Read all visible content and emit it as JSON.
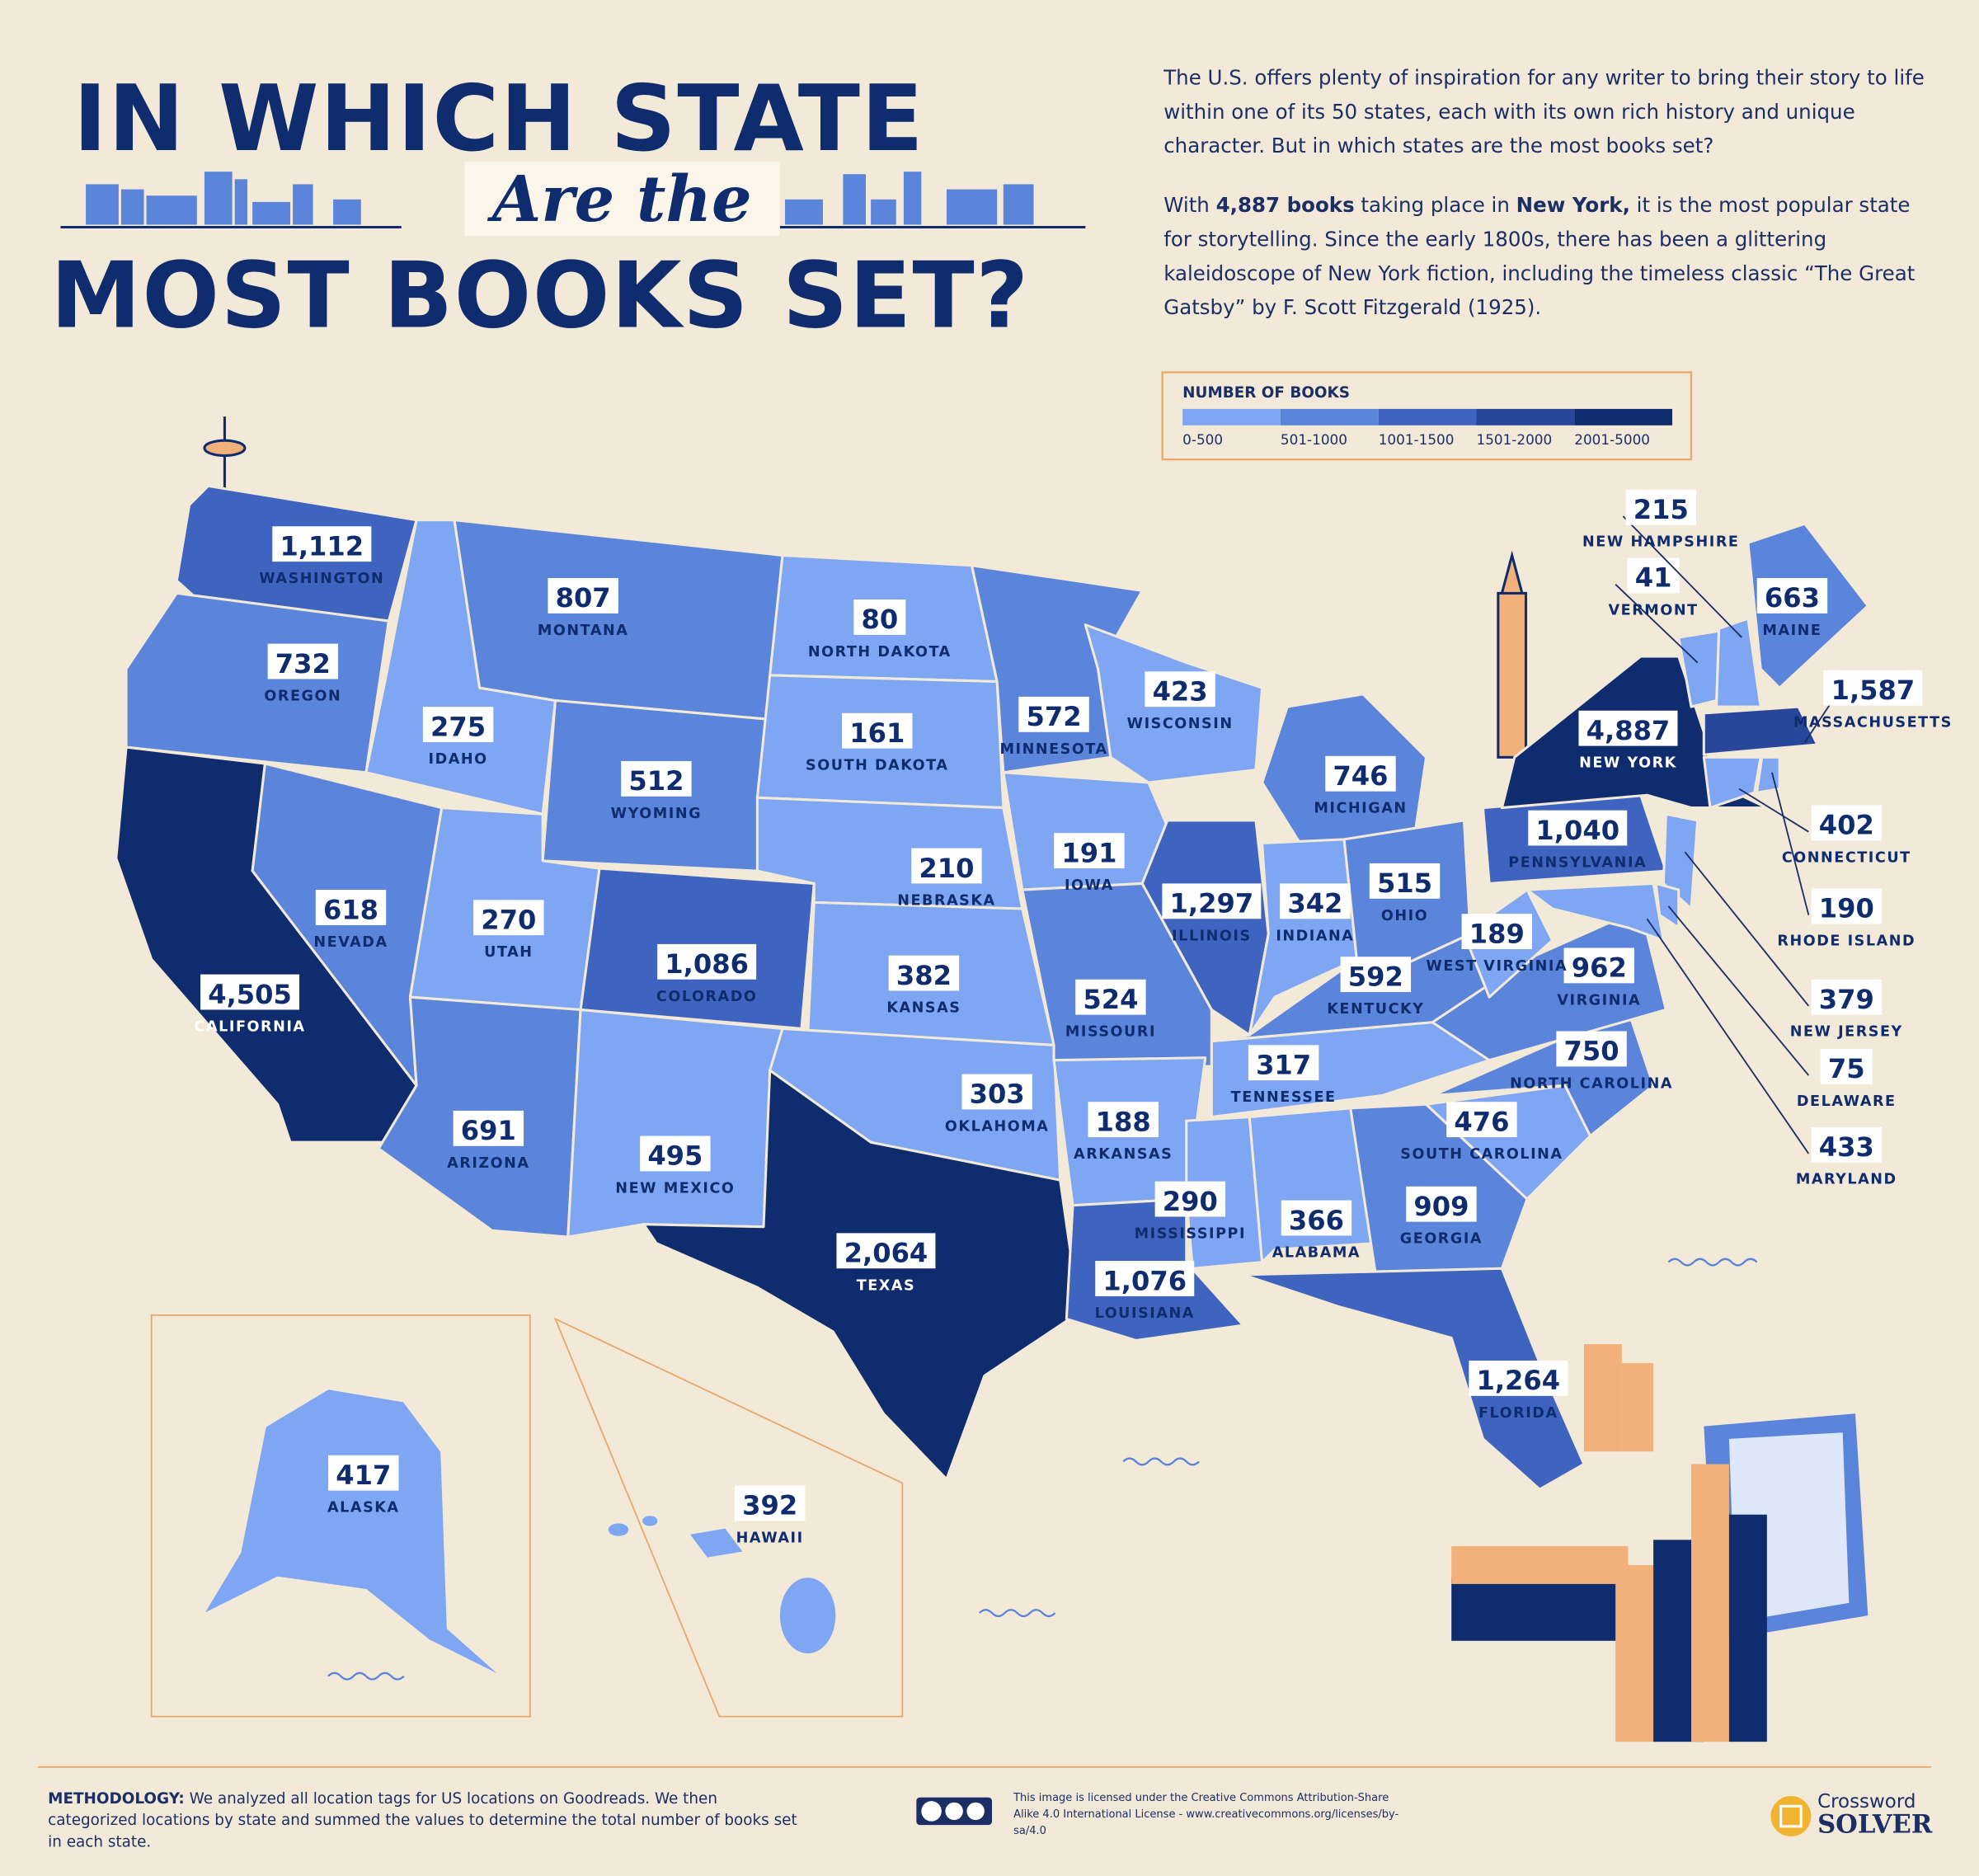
{
  "header": {
    "title_top": "IN WHICH STATE",
    "title_middle": "Are the",
    "title_bottom": "MOST BOOKS SET?"
  },
  "description": [
    [
      "The U.S. offers plenty of inspiration for any writer to bring their story to life within one of its 50 states, each with its own rich history and unique character. But in which states are the most books set?"
    ],
    [
      "With ",
      "4,887 books",
      " taking place in ",
      "New York,",
      " it is the most popular state for storytelling. Since the early 1800s, there has been a glittering kaleidoscope of New York fiction, including the timeless classic “The Great Gatsby” by F. Scott Fitzgerald (1925)."
    ]
  ],
  "legend": {
    "title": "NUMBER OF BOOKS",
    "bins": [
      {
        "label": "0-500",
        "color": "#7ea6f2"
      },
      {
        "label": "501-1000",
        "color": "#5b84db"
      },
      {
        "label": "1001-1500",
        "color": "#3e64bf"
      },
      {
        "label": "1501-2000",
        "color": "#28479a"
      },
      {
        "label": "2001-5000",
        "color": "#0f2d6e"
      }
    ]
  },
  "states": [
    {
      "name": "WASHINGTON",
      "value": "1,112",
      "color": "#3e64bf"
    },
    {
      "name": "OREGON",
      "value": "732",
      "color": "#5b84db"
    },
    {
      "name": "CALIFORNIA",
      "value": "4,505",
      "color": "#0f2d6e"
    },
    {
      "name": "NEVADA",
      "value": "618",
      "color": "#5b84db"
    },
    {
      "name": "IDAHO",
      "value": "275",
      "color": "#7ea6f2"
    },
    {
      "name": "MONTANA",
      "value": "807",
      "color": "#5b84db"
    },
    {
      "name": "WYOMING",
      "value": "512",
      "color": "#5b84db"
    },
    {
      "name": "UTAH",
      "value": "270",
      "color": "#7ea6f2"
    },
    {
      "name": "COLORADO",
      "value": "1,086",
      "color": "#3e64bf"
    },
    {
      "name": "ARIZONA",
      "value": "691",
      "color": "#5b84db"
    },
    {
      "name": "NEW MEXICO",
      "value": "495",
      "color": "#7ea6f2"
    },
    {
      "name": "NORTH DAKOTA",
      "value": "80",
      "color": "#7ea6f2"
    },
    {
      "name": "SOUTH DAKOTA",
      "value": "161",
      "color": "#7ea6f2"
    },
    {
      "name": "NEBRASKA",
      "value": "210",
      "color": "#7ea6f2"
    },
    {
      "name": "KANSAS",
      "value": "382",
      "color": "#7ea6f2"
    },
    {
      "name": "OKLAHOMA",
      "value": "303",
      "color": "#7ea6f2"
    },
    {
      "name": "TEXAS",
      "value": "2,064",
      "color": "#0f2d6e"
    },
    {
      "name": "MINNESOTA",
      "value": "572",
      "color": "#5b84db"
    },
    {
      "name": "IOWA",
      "value": "191",
      "color": "#7ea6f2"
    },
    {
      "name": "MISSOURI",
      "value": "524",
      "color": "#5b84db"
    },
    {
      "name": "ARKANSAS",
      "value": "188",
      "color": "#7ea6f2"
    },
    {
      "name": "LOUISIANA",
      "value": "1,076",
      "color": "#3e64bf"
    },
    {
      "name": "WISCONSIN",
      "value": "423",
      "color": "#7ea6f2"
    },
    {
      "name": "ILLINOIS",
      "value": "1,297",
      "color": "#3e64bf"
    },
    {
      "name": "MICHIGAN",
      "value": "746",
      "color": "#5b84db"
    },
    {
      "name": "INDIANA",
      "value": "342",
      "color": "#7ea6f2"
    },
    {
      "name": "OHIO",
      "value": "515",
      "color": "#5b84db"
    },
    {
      "name": "KENTUCKY",
      "value": "592",
      "color": "#5b84db"
    },
    {
      "name": "TENNESSEE",
      "value": "317",
      "color": "#7ea6f2"
    },
    {
      "name": "MISSISSIPPI",
      "value": "290",
      "color": "#7ea6f2"
    },
    {
      "name": "ALABAMA",
      "value": "366",
      "color": "#7ea6f2"
    },
    {
      "name": "GEORGIA",
      "value": "909",
      "color": "#5b84db"
    },
    {
      "name": "FLORIDA",
      "value": "1,264",
      "color": "#3e64bf"
    },
    {
      "name": "SOUTH CAROLINA",
      "value": "476",
      "color": "#7ea6f2"
    },
    {
      "name": "NORTH CAROLINA",
      "value": "750",
      "color": "#5b84db"
    },
    {
      "name": "VIRGINIA",
      "value": "962",
      "color": "#5b84db"
    },
    {
      "name": "WEST VIRGINIA",
      "value": "189",
      "color": "#7ea6f2"
    },
    {
      "name": "PENNSYLVANIA",
      "value": "1,040",
      "color": "#3e64bf"
    },
    {
      "name": "NEW YORK",
      "value": "4,887",
      "color": "#0f2d6e"
    },
    {
      "name": "VERMONT",
      "value": "41",
      "color": "#7ea6f2"
    },
    {
      "name": "NEW HAMPSHIRE",
      "value": "215",
      "color": "#7ea6f2"
    },
    {
      "name": "MAINE",
      "value": "663",
      "color": "#5b84db"
    },
    {
      "name": "MASSACHUSETTS",
      "value": "1,587",
      "color": "#28479a"
    },
    {
      "name": "CONNECTICUT",
      "value": "402",
      "color": "#7ea6f2"
    },
    {
      "name": "RHODE ISLAND",
      "value": "190",
      "color": "#7ea6f2"
    },
    {
      "name": "NEW JERSEY",
      "value": "379",
      "color": "#7ea6f2"
    },
    {
      "name": "DELAWARE",
      "value": "75",
      "color": "#7ea6f2"
    },
    {
      "name": "MARYLAND",
      "value": "433",
      "color": "#7ea6f2"
    },
    {
      "name": "ALASKA",
      "value": "417",
      "color": "#7ea6f2"
    },
    {
      "name": "HAWAII",
      "value": "392",
      "color": "#7ea6f2"
    }
  ],
  "footer": {
    "methodology_label": "METHODOLOGY:",
    "methodology": "We analyzed all location tags for US locations on Goodreads. We then categorized locations by state and summed the values to determine the total number of books set in each state.",
    "license": "This image is licensed under the Creative Commons Attribution-Share Alike 4.0 International License - www.creativecommons.org/licenses/by-sa/4.0",
    "logo_top": "Crossword",
    "logo_bottom": "SOLVER"
  }
}
